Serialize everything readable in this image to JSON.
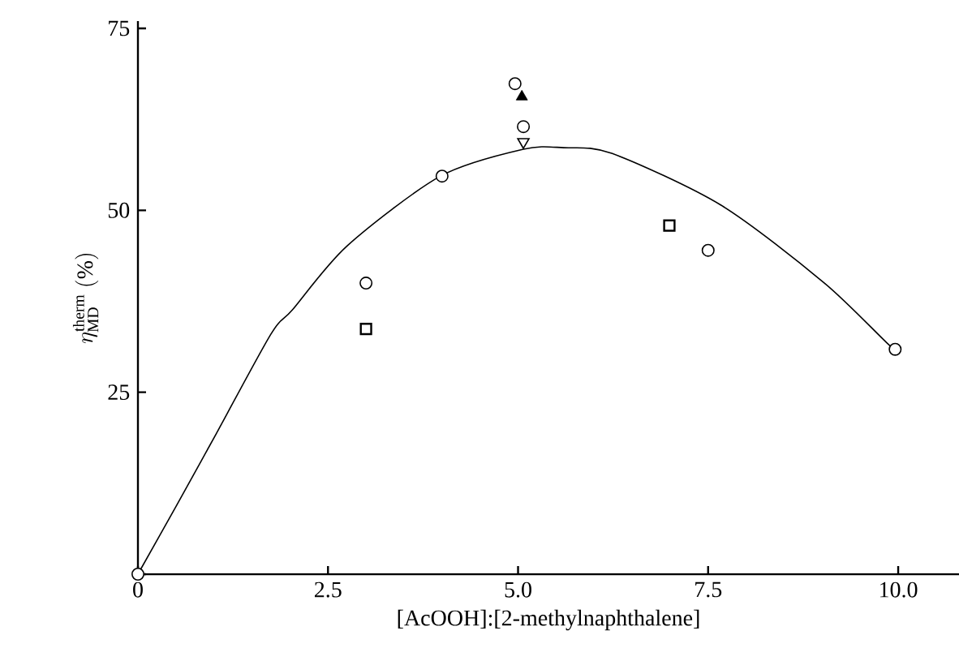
{
  "chart_data": {
    "type": "scatter",
    "xlabel": "[AcOOH]:[2-methylnaphthalene]",
    "ylabel": "\\eta^{\\mathrm{therm}}_{\\mathrm{MD}}\\ (\\%)",
    "xlim": [
      0,
      10.8
    ],
    "ylim": [
      0,
      76
    ],
    "xticks": [
      {
        "value": 0,
        "label": "0"
      },
      2.5,
      {
        "value": 5,
        "label": "5.0"
      },
      7.5,
      {
        "value": 10,
        "label": "10.0"
      }
    ],
    "yticks": [
      {
        "value": 0,
        "label": null
      },
      25,
      50,
      75
    ],
    "grid": false,
    "series": [
      {
        "type": "line",
        "color": "#000000",
        "marker": "none",
        "line_style": "solid",
        "x": [
          0,
          0.5,
          1.03,
          1.75,
          2.03,
          2.75,
          3.98,
          5.07,
          5.6,
          6.24,
          7.67,
          9.03,
          9.88,
          10.0
        ],
        "values": [
          0,
          9.3,
          19.3,
          33,
          36.3,
          45.1,
          54.7,
          58.4,
          58.6,
          57.8,
          50.7,
          40,
          31.5,
          30.9
        ]
      },
      {
        "color": "#000000",
        "marker": "circle",
        "x": [
          0,
          3.0,
          4.0,
          4.96,
          5.07,
          7.5,
          9.96
        ],
        "values": [
          0,
          40,
          54.7,
          67.4,
          61.5,
          44.5,
          30.9
        ]
      },
      {
        "color": "#000000",
        "marker": "square",
        "x": [
          3.0,
          6.99
        ],
        "values": [
          33.7,
          47.9
        ]
      },
      {
        "color": "#000000",
        "marker": "triangle",
        "x": [
          5.05
        ],
        "values": [
          65.6
        ]
      },
      {
        "color": "#000000",
        "marker": "triangle down",
        "x": [
          5.07
        ],
        "values": [
          59.4
        ]
      }
    ]
  }
}
